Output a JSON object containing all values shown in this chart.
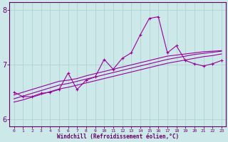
{
  "xlabel": "Windchill (Refroidissement éolien,°C)",
  "x_data": [
    0,
    1,
    2,
    3,
    4,
    5,
    6,
    7,
    8,
    9,
    10,
    11,
    12,
    13,
    14,
    15,
    16,
    17,
    18,
    19,
    20,
    21,
    22,
    23
  ],
  "y_main": [
    6.5,
    6.42,
    6.42,
    6.48,
    6.5,
    6.55,
    6.85,
    6.55,
    6.72,
    6.78,
    7.1,
    6.92,
    7.12,
    7.22,
    7.55,
    7.85,
    7.88,
    7.22,
    7.35,
    7.08,
    7.02,
    6.98,
    7.02,
    7.08
  ],
  "y_line1": [
    6.45,
    6.5,
    6.55,
    6.6,
    6.65,
    6.7,
    6.72,
    6.75,
    6.8,
    6.84,
    6.88,
    6.92,
    6.96,
    7.0,
    7.04,
    7.08,
    7.12,
    7.16,
    7.18,
    7.2,
    7.22,
    7.24,
    7.25,
    7.26
  ],
  "y_line2": [
    6.38,
    6.43,
    6.48,
    6.53,
    6.58,
    6.63,
    6.66,
    6.7,
    6.74,
    6.78,
    6.82,
    6.86,
    6.9,
    6.94,
    6.98,
    7.02,
    7.06,
    7.1,
    7.13,
    7.16,
    7.19,
    7.21,
    7.23,
    7.25
  ],
  "y_line3": [
    6.32,
    6.36,
    6.41,
    6.46,
    6.51,
    6.56,
    6.59,
    6.63,
    6.67,
    6.71,
    6.75,
    6.79,
    6.83,
    6.87,
    6.91,
    6.95,
    6.99,
    7.03,
    7.06,
    7.09,
    7.12,
    7.15,
    7.17,
    7.2
  ],
  "line_color": "#990099",
  "bg_color": "#cce8e8",
  "grid_color": "#aacece",
  "axis_color": "#660066",
  "ylim": [
    5.88,
    8.15
  ],
  "yticks": [
    6,
    7,
    8
  ],
  "figsize": [
    3.2,
    2.0
  ],
  "dpi": 100
}
